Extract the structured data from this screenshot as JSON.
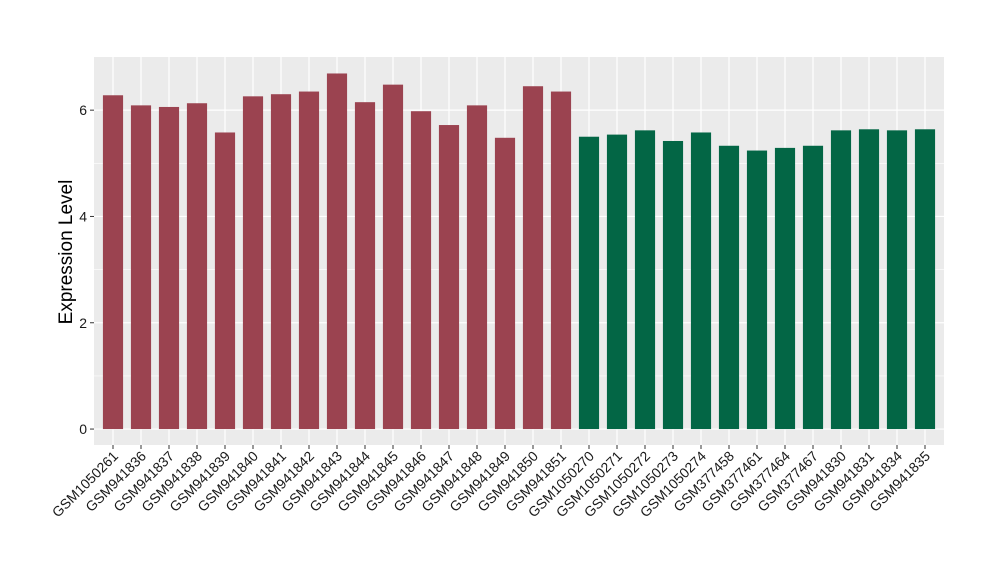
{
  "chart_data": {
    "type": "bar",
    "title": "",
    "xlabel": "",
    "ylabel": "Expression Level",
    "ylim": [
      -0.3,
      7.0
    ],
    "yticks": [
      0,
      2,
      4,
      6
    ],
    "grid": true,
    "legend": "none",
    "colors": {
      "group_1": "#9b4350",
      "group_2": "#036645",
      "panel_bg": "#ebebeb",
      "grid": "#ffffff"
    },
    "categories": [
      "GSM1050261",
      "GSM941836",
      "GSM941837",
      "GSM941838",
      "GSM941839",
      "GSM941840",
      "GSM941841",
      "GSM941842",
      "GSM941843",
      "GSM941844",
      "GSM941845",
      "GSM941846",
      "GSM941847",
      "GSM941848",
      "GSM941849",
      "GSM941850",
      "GSM941851",
      "GSM1050270",
      "GSM1050271",
      "GSM1050272",
      "GSM1050273",
      "GSM1050274",
      "GSM377458",
      "GSM377461",
      "GSM377464",
      "GSM377467",
      "GSM941830",
      "GSM941831",
      "GSM941834",
      "GSM941835"
    ],
    "values": [
      6.28,
      6.09,
      6.06,
      6.13,
      5.58,
      6.26,
      6.3,
      6.35,
      6.69,
      6.15,
      6.48,
      5.98,
      5.72,
      6.09,
      5.48,
      6.45,
      6.35,
      5.5,
      5.54,
      5.62,
      5.42,
      5.58,
      5.33,
      5.24,
      5.29,
      5.33,
      5.62,
      5.64,
      5.62,
      5.64
    ],
    "groups": [
      1,
      1,
      1,
      1,
      1,
      1,
      1,
      1,
      1,
      1,
      1,
      1,
      1,
      1,
      1,
      1,
      1,
      2,
      2,
      2,
      2,
      2,
      2,
      2,
      2,
      2,
      2,
      2,
      2,
      2
    ]
  }
}
